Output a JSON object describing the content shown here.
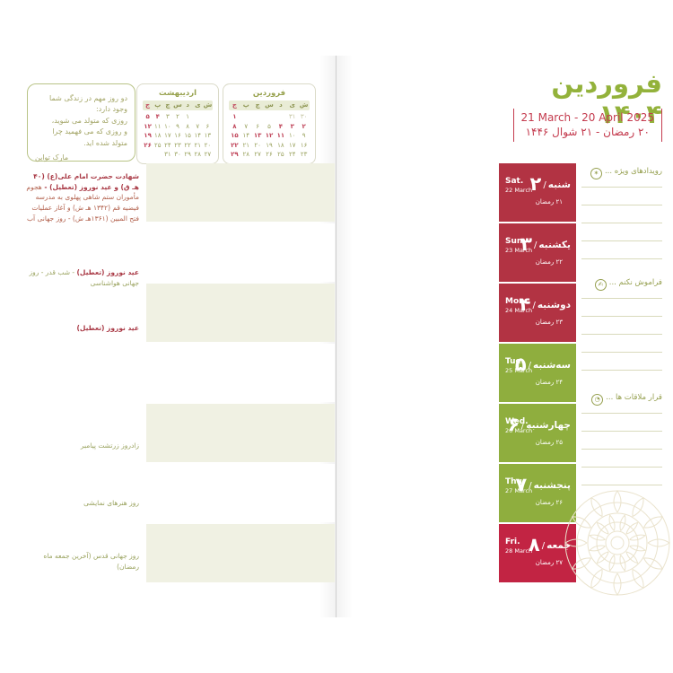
{
  "colors": {
    "accent_green": "#8fae3e",
    "accent_red": "#b23343",
    "accent_red_bright": "#c22443",
    "title_green": "#93b23b",
    "date_red": "#c43b4e",
    "pale_band": "#f0f1e3",
    "rule_line": "#d9dabc"
  },
  "right_page": {
    "title": "فروردین ۱۴۰۴",
    "date_range_en": "21 March - 20 April 2025",
    "date_range_hijri": "۲۰ رمضان - ۲۱ شوال ۱۴۴۶",
    "days": [
      {
        "fa_name": "شنبه",
        "fa_num": "۲",
        "en_day": "Sat.",
        "en_date": "22 March",
        "hijri": "۲۱ رمضان",
        "color": "red"
      },
      {
        "fa_name": "یکشنبه",
        "fa_num": "۳",
        "en_day": "Sun.",
        "en_date": "23 March",
        "hijri": "۲۲ رمضان",
        "color": "red"
      },
      {
        "fa_name": "دوشنبه",
        "fa_num": "۴",
        "en_day": "Mon.",
        "en_date": "24 March",
        "hijri": "۲۳ رمضان",
        "color": "red"
      },
      {
        "fa_name": "سه‌شنبه",
        "fa_num": "۵",
        "en_day": "Tue.",
        "en_date": "25 March",
        "hijri": "۲۴ رمضان",
        "color": "green"
      },
      {
        "fa_name": "چهارشنبه",
        "fa_num": "۶",
        "en_day": "Wed.",
        "en_date": "26 March",
        "hijri": "۲۵ رمضان",
        "color": "green"
      },
      {
        "fa_name": "پنجشنبه",
        "fa_num": "۷",
        "en_day": "Thu.",
        "en_date": "27 March",
        "hijri": "۲۶ رمضان",
        "color": "green"
      },
      {
        "fa_name": "جمعه",
        "fa_num": "۸",
        "en_day": "Fri.",
        "en_date": "28 March",
        "hijri": "۲۷ رمضان",
        "color": "red_bright"
      }
    ],
    "sections": [
      {
        "label": "رویدادهای ویژه ...",
        "icon": "star-icon",
        "glyph": "✶"
      },
      {
        "label": "فراموش نکنم ...",
        "icon": "note-icon",
        "glyph": "✍"
      },
      {
        "label": "قرار ملاقات ها ...",
        "icon": "clock-icon",
        "glyph": "◔"
      }
    ]
  },
  "left_page": {
    "quote": {
      "lines": [
        "دو روز مهم در زندگی شما وجود دارد:",
        "روزی که متولد می شوید،",
        "و روزی که می فهمید چرا متولد شده اید."
      ],
      "attribution": "مارک تواین"
    },
    "mini_calendars": [
      {
        "title": "فروردین",
        "weekdays": [
          "ش",
          "ی",
          "د",
          "س",
          "چ",
          "پ",
          "ج"
        ],
        "rows": [
          [
            {
              "t": "۳۰",
              "c": "m"
            },
            {
              "t": "۳۱",
              "c": "m"
            },
            {
              "t": "",
              "c": "g"
            },
            {
              "t": "",
              "c": "g"
            },
            {
              "t": "",
              "c": "g"
            },
            {
              "t": "",
              "c": "g"
            },
            {
              "t": "۱",
              "c": "r"
            }
          ],
          [
            {
              "t": "۲",
              "c": "r"
            },
            {
              "t": "۳",
              "c": "r"
            },
            {
              "t": "۴",
              "c": "r"
            },
            {
              "t": "۵",
              "c": "g"
            },
            {
              "t": "۶",
              "c": "g"
            },
            {
              "t": "۷",
              "c": "g"
            },
            {
              "t": "۸",
              "c": "r"
            }
          ],
          [
            {
              "t": "۹",
              "c": "g"
            },
            {
              "t": "۱۰",
              "c": "g"
            },
            {
              "t": "۱۱",
              "c": "r"
            },
            {
              "t": "۱۲",
              "c": "r"
            },
            {
              "t": "۱۳",
              "c": "r"
            },
            {
              "t": "۱۴",
              "c": "g"
            },
            {
              "t": "۱۵",
              "c": "r"
            }
          ],
          [
            {
              "t": "۱۶",
              "c": "g"
            },
            {
              "t": "۱۷",
              "c": "g"
            },
            {
              "t": "۱۸",
              "c": "g"
            },
            {
              "t": "۱۹",
              "c": "g"
            },
            {
              "t": "۲۰",
              "c": "g"
            },
            {
              "t": "۲۱",
              "c": "g"
            },
            {
              "t": "۲۲",
              "c": "r"
            }
          ],
          [
            {
              "t": "۲۳",
              "c": "g"
            },
            {
              "t": "۲۴",
              "c": "g"
            },
            {
              "t": "۲۵",
              "c": "g"
            },
            {
              "t": "۲۶",
              "c": "g"
            },
            {
              "t": "۲۷",
              "c": "g"
            },
            {
              "t": "۲۸",
              "c": "g"
            },
            {
              "t": "۲۹",
              "c": "r"
            }
          ]
        ]
      },
      {
        "title": "اردیبهشت",
        "weekdays": [
          "ش",
          "ی",
          "د",
          "س",
          "چ",
          "پ",
          "ج"
        ],
        "rows": [
          [
            {
              "t": "",
              "c": "g"
            },
            {
              "t": "",
              "c": "g"
            },
            {
              "t": "۱",
              "c": "g"
            },
            {
              "t": "۲",
              "c": "g"
            },
            {
              "t": "۳",
              "c": "g"
            },
            {
              "t": "۴",
              "c": "r"
            },
            {
              "t": "۵",
              "c": "r"
            }
          ],
          [
            {
              "t": "۶",
              "c": "g"
            },
            {
              "t": "۷",
              "c": "g"
            },
            {
              "t": "۸",
              "c": "g"
            },
            {
              "t": "۹",
              "c": "g"
            },
            {
              "t": "۱۰",
              "c": "g"
            },
            {
              "t": "۱۱",
              "c": "g"
            },
            {
              "t": "۱۲",
              "c": "r"
            }
          ],
          [
            {
              "t": "۱۳",
              "c": "g"
            },
            {
              "t": "۱۴",
              "c": "g"
            },
            {
              "t": "۱۵",
              "c": "g"
            },
            {
              "t": "۱۶",
              "c": "g"
            },
            {
              "t": "۱۷",
              "c": "g"
            },
            {
              "t": "۱۸",
              "c": "g"
            },
            {
              "t": "۱۹",
              "c": "r"
            }
          ],
          [
            {
              "t": "۲۰",
              "c": "g"
            },
            {
              "t": "۲۱",
              "c": "g"
            },
            {
              "t": "۲۲",
              "c": "g"
            },
            {
              "t": "۲۳",
              "c": "g"
            },
            {
              "t": "۲۴",
              "c": "g"
            },
            {
              "t": "۲۵",
              "c": "g"
            },
            {
              "t": "۲۶",
              "c": "r"
            }
          ],
          [
            {
              "t": "۲۷",
              "c": "g"
            },
            {
              "t": "۲۸",
              "c": "g"
            },
            {
              "t": "۲۹",
              "c": "g"
            },
            {
              "t": "۳۰",
              "c": "g"
            },
            {
              "t": "۳۱",
              "c": "g"
            },
            {
              "t": "",
              "c": "g"
            },
            {
              "t": "",
              "c": "g"
            }
          ]
        ]
      }
    ],
    "annotations": [
      {
        "row": 1,
        "parts": [
          {
            "t": "شهادت حضرت امام علی(ع) (۴۰ هـ ق) و عید نوروز (تعطیل) - ",
            "s": "red"
          },
          {
            "t": "هجوم مأموران ستم شاهی پهلوی به مدرسه فیضیه قم (۱۳۴۲ هـ ش) و آغاز عملیات فتح المبین (۱۳۶۱هـ ش) - روز جهانی آب",
            "s": "brown"
          }
        ]
      },
      {
        "row": 2,
        "parts": [
          {
            "t": "عید نوروز (تعطیل)",
            "s": "red"
          },
          {
            "t": " - شب قدر - روز جهانی هواشناسی",
            "s": "olive"
          }
        ]
      },
      {
        "row": 3,
        "parts": [
          {
            "t": "عید نوروز (تعطیل)",
            "s": "red"
          }
        ]
      },
      {
        "row": 5,
        "parts": [
          {
            "t": "زادروز زرتشت پیامبر",
            "s": "olive"
          }
        ]
      },
      {
        "row": 6,
        "parts": [
          {
            "t": "روز هنرهای نمایشی",
            "s": "olive"
          }
        ]
      },
      {
        "row": 7,
        "parts": [
          {
            "t": "روز جهانی قدس (آخرین جمعه ماه رمضان)",
            "s": "olive"
          }
        ]
      }
    ]
  }
}
